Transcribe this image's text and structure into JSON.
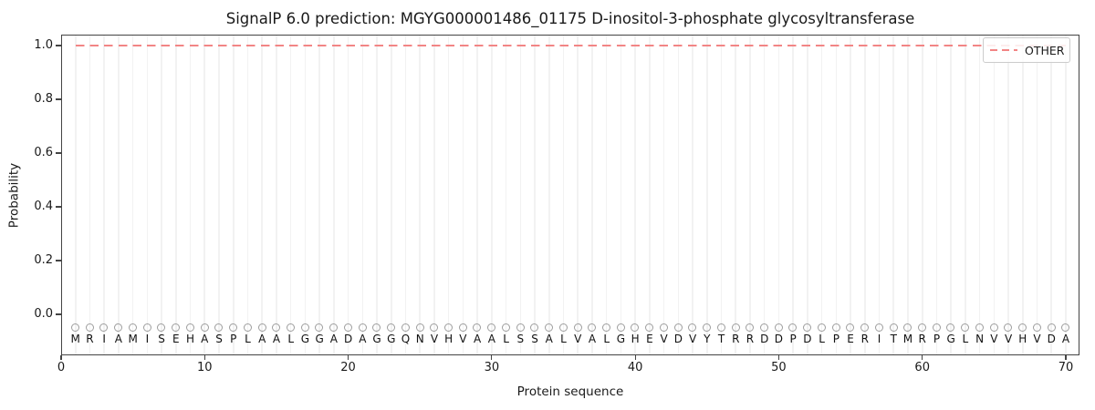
{
  "title": "SignalP 6.0 prediction: MGYG000001486_01175 D-inositol-3-phosphate glycosyltransferase",
  "legend": {
    "label": "OTHER",
    "line_color": "#f28585",
    "line_style": "dashed",
    "position": "upper right"
  },
  "y_axis": {
    "label": "Probability",
    "ticks": [
      "0.0",
      "0.2",
      "0.4",
      "0.6",
      "0.8",
      "1.0"
    ]
  },
  "x_axis": {
    "label": "Protein sequence",
    "ticks": [
      "0",
      "10",
      "20",
      "30",
      "40",
      "50",
      "60",
      "70"
    ]
  },
  "sequence": "MRIAMISEHASPLAALGGADAGGQNVHVAALSSALVALGHEVDVYTRRDDPDLPERITMRPGLNVVHVDA",
  "colors": {
    "other_line": "#f28585",
    "marker_edge": "#9e9e9e",
    "gridline": "#f2f2f2",
    "spine": "#444444",
    "text": "#1a1a1a"
  },
  "chart_data": {
    "type": "line",
    "title": "SignalP 6.0 prediction: MGYG000001486_01175 D-inositol-3-phosphate glycosyltransferase",
    "xlabel": "Protein sequence",
    "ylabel": "Probability",
    "xlim": [
      0,
      71
    ],
    "ylim": [
      -0.15,
      1.04
    ],
    "grid": "vertical line at every residue position, light gray",
    "legend_position": "upper right",
    "x": [
      1,
      2,
      3,
      4,
      5,
      6,
      7,
      8,
      9,
      10,
      11,
      12,
      13,
      14,
      15,
      16,
      17,
      18,
      19,
      20,
      21,
      22,
      23,
      24,
      25,
      26,
      27,
      28,
      29,
      30,
      31,
      32,
      33,
      34,
      35,
      36,
      37,
      38,
      39,
      40,
      41,
      42,
      43,
      44,
      45,
      46,
      47,
      48,
      49,
      50,
      51,
      52,
      53,
      54,
      55,
      56,
      57,
      58,
      59,
      60,
      61,
      62,
      63,
      64,
      65,
      66,
      67,
      68,
      69,
      70
    ],
    "series": [
      {
        "name": "OTHER",
        "style": "dashed",
        "color": "#f28585",
        "values": [
          1.0,
          1.0,
          1.0,
          1.0,
          1.0,
          1.0,
          1.0,
          1.0,
          1.0,
          1.0,
          1.0,
          1.0,
          1.0,
          1.0,
          1.0,
          1.0,
          1.0,
          1.0,
          1.0,
          1.0,
          1.0,
          1.0,
          1.0,
          1.0,
          1.0,
          1.0,
          1.0,
          1.0,
          1.0,
          1.0,
          1.0,
          1.0,
          1.0,
          1.0,
          1.0,
          1.0,
          1.0,
          1.0,
          1.0,
          1.0,
          1.0,
          1.0,
          1.0,
          1.0,
          1.0,
          1.0,
          1.0,
          1.0,
          1.0,
          1.0,
          1.0,
          1.0,
          1.0,
          1.0,
          1.0,
          1.0,
          1.0,
          1.0,
          1.0,
          1.0,
          1.0,
          1.0,
          1.0,
          1.0,
          1.0,
          1.0,
          1.0,
          1.0,
          1.0,
          1.0
        ]
      }
    ],
    "annotations": {
      "sequence_letters": "MRIAMISEHASPLAALGGADAGGQNVHVAALSSALVALGHEVDVYTRRDDPDLPERITMRPGLNVVHVDA",
      "sequence_marker_symbol": "open-circle",
      "sequence_marker_y": -0.05,
      "sequence_letters_y": -0.11
    }
  }
}
